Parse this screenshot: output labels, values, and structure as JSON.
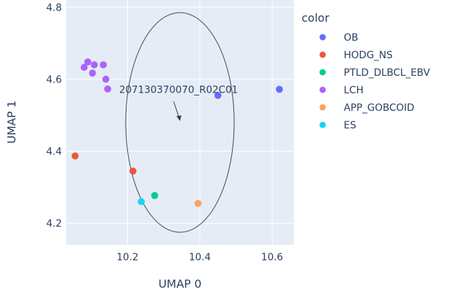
{
  "chart_data": {
    "type": "scatter",
    "xlabel": "UMAP 0",
    "ylabel": "UMAP 1",
    "xlim": [
      10.03,
      10.66
    ],
    "ylim": [
      4.14,
      4.82
    ],
    "xticks": [
      10.2,
      10.4,
      10.6
    ],
    "yticks": [
      4.2,
      4.4,
      4.6,
      4.8
    ],
    "x_tick_labels": [
      "10.2",
      "10.4",
      "10.6"
    ],
    "y_tick_labels": [
      "4.2",
      "4.4",
      "4.6",
      "4.8"
    ],
    "grid": true,
    "legend": {
      "title": "color",
      "placement": "right"
    },
    "series": [
      {
        "name": "OB",
        "color": "#636efa",
        "points": [
          [
            10.45,
            4.555
          ],
          [
            10.62,
            4.572
          ]
        ]
      },
      {
        "name": "HODG_NS",
        "color": "#ef553b",
        "points": [
          [
            10.055,
            4.387
          ],
          [
            10.215,
            4.345
          ]
        ]
      },
      {
        "name": "PTLD_DLBCL_EBV",
        "color": "#00cc96",
        "points": [
          [
            10.275,
            4.277
          ]
        ]
      },
      {
        "name": "LCH",
        "color": "#ab63fa",
        "points": [
          [
            10.08,
            4.633
          ],
          [
            10.09,
            4.648
          ],
          [
            10.103,
            4.617
          ],
          [
            10.108,
            4.64
          ],
          [
            10.133,
            4.64
          ],
          [
            10.14,
            4.6
          ],
          [
            10.145,
            4.573
          ]
        ]
      },
      {
        "name": "APP_GOBCOID",
        "color": "#ffa15a",
        "points": [
          [
            10.395,
            4.255
          ]
        ]
      },
      {
        "name": "ES",
        "color": "#19d3f3",
        "points": [
          [
            10.238,
            4.26
          ]
        ]
      }
    ],
    "annotation": {
      "text": "207130370070_R02C01",
      "x": 10.345,
      "y": 4.48
    },
    "highlight_circle": {
      "center_x": 10.345,
      "center_y": 4.48,
      "radius_x": 0.15,
      "radius_y": 0.305
    }
  }
}
